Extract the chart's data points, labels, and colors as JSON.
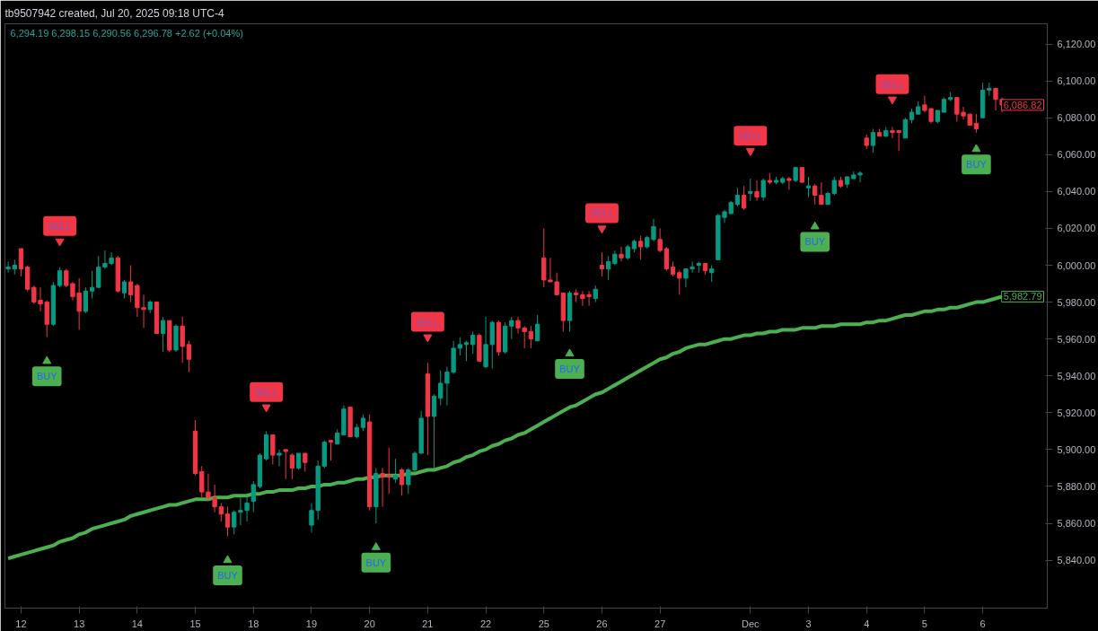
{
  "chart_data": {
    "type": "candlestick",
    "title": "tb9507942 created, Jul 20, 2025 09:18 UTC-4",
    "annotations": [
      "6,294.19  6,298.15  6,290.56  6,296.78  +2.62 (+0.04%)",
      "6,086.82",
      "5,982.79"
    ],
    "categories": [
      null,
      null,
      "12",
      null,
      null,
      null,
      null,
      null,
      null,
      null,
      null,
      "13",
      null,
      null,
      null,
      null,
      null,
      null,
      null,
      null,
      "14",
      null,
      null,
      null,
      null,
      null,
      null,
      null,
      null,
      "15",
      null,
      null,
      null,
      null,
      null,
      null,
      null,
      null,
      "18",
      null,
      null,
      null,
      null,
      null,
      null,
      null,
      null,
      "19",
      null,
      null,
      null,
      null,
      null,
      null,
      null,
      null,
      "20",
      null,
      null,
      null,
      null,
      null,
      null,
      null,
      null,
      "21",
      null,
      null,
      null,
      null,
      null,
      null,
      null,
      null,
      "22",
      null,
      null,
      null,
      null,
      null,
      null,
      null,
      null,
      "25",
      null,
      null,
      null,
      null,
      null,
      null,
      null,
      null,
      "26",
      null,
      null,
      null,
      null,
      null,
      null,
      null,
      null,
      "27",
      null,
      null,
      null,
      null,
      null,
      null,
      null,
      null,
      null,
      null,
      null,
      null,
      null,
      "Dec",
      null,
      null,
      null,
      null,
      null,
      null,
      null,
      null,
      "3",
      null,
      null,
      null,
      null,
      null,
      null,
      null,
      null,
      "4",
      null,
      null,
      null,
      null,
      null,
      null,
      null,
      null,
      "5",
      null,
      null,
      null,
      null,
      null,
      null,
      null,
      null,
      "6",
      null,
      null,
      null
    ],
    "ohlc": [
      [
        5998,
        6002,
        5996,
        5999
      ],
      [
        5998,
        6003,
        5995,
        6000
      ],
      [
        6009,
        6009,
        5994,
        5998
      ],
      [
        5999,
        6000,
        5986,
        5987
      ],
      [
        5988,
        5989,
        5979,
        5980
      ],
      [
        5981,
        5988,
        5975,
        5979
      ],
      [
        5980,
        5981,
        5961,
        5968
      ],
      [
        5968,
        5991,
        5967,
        5989
      ],
      [
        5989,
        5999,
        5988,
        5997
      ],
      [
        5997,
        5998,
        5988,
        5989
      ],
      [
        5990,
        5991,
        5981,
        5983
      ],
      [
        5985,
        5993,
        5965,
        5975
      ],
      [
        5975,
        5988,
        5974,
        5986
      ],
      [
        5986,
        5997,
        5982,
        5988
      ],
      [
        5988,
        6005,
        5988,
        5999
      ],
      [
        5999,
        6008,
        5998,
        6001
      ],
      [
        6001,
        6007,
        6000,
        6004
      ],
      [
        6004,
        6005,
        5985,
        5986
      ],
      [
        5985,
        5992,
        5982,
        5991
      ],
      [
        5991,
        6000,
        5980,
        5984
      ],
      [
        5989,
        5990,
        5972,
        5977
      ],
      [
        5977,
        5984,
        5966,
        5976
      ],
      [
        5976,
        5981,
        5974,
        5980
      ],
      [
        5980,
        5980,
        5963,
        5963
      ],
      [
        5963,
        5972,
        5953,
        5970
      ],
      [
        5970,
        5970,
        5953,
        5954
      ],
      [
        5954,
        5968,
        5953,
        5967
      ],
      [
        5967,
        5972,
        5947,
        5956
      ],
      [
        5957,
        5959,
        5942,
        5949
      ],
      [
        5910,
        5916,
        5886,
        5887
      ],
      [
        5888,
        5891,
        5874,
        5877
      ],
      [
        5877,
        5887,
        5872,
        5874
      ],
      [
        5874,
        5881,
        5866,
        5869
      ],
      [
        5869,
        5871,
        5861,
        5865
      ],
      [
        5865,
        5869,
        5853,
        5858
      ],
      [
        5858,
        5867,
        5854,
        5866
      ],
      [
        5866,
        5874,
        5859,
        5867
      ],
      [
        5867,
        5875,
        5861,
        5871
      ],
      [
        5872,
        5883,
        5866,
        5881
      ],
      [
        5880,
        5898,
        5879,
        5897
      ],
      [
        5895,
        5910,
        5894,
        5908
      ],
      [
        5908,
        5908,
        5892,
        5897
      ],
      [
        5897,
        5900,
        5891,
        5898
      ],
      [
        5900,
        5900,
        5884,
        5899
      ],
      [
        5897,
        5898,
        5884,
        5890
      ],
      [
        5890,
        5898,
        5889,
        5898
      ],
      [
        5898,
        5898,
        5888,
        5893
      ],
      [
        5859,
        5871,
        5855,
        5867
      ],
      [
        5867,
        5894,
        5862,
        5891
      ],
      [
        5891,
        5905,
        5890,
        5904
      ],
      [
        5905,
        5905,
        5894,
        5904
      ],
      [
        5903,
        5911,
        5903,
        5909
      ],
      [
        5908,
        5924,
        5908,
        5922
      ],
      [
        5923,
        5923,
        5907,
        5907
      ],
      [
        5907,
        5914,
        5906,
        5912
      ],
      [
        5912,
        5919,
        5910,
        5917
      ],
      [
        5915,
        5919,
        5867,
        5869
      ],
      [
        5869,
        5890,
        5860,
        5887
      ],
      [
        5887,
        5890,
        5869,
        5885
      ],
      [
        5886,
        5901,
        5876,
        5885
      ],
      [
        5884,
        5895,
        5882,
        5886
      ],
      [
        5889,
        5890,
        5875,
        5881
      ],
      [
        5881,
        5890,
        5876,
        5889
      ],
      [
        5889,
        5899,
        5888,
        5898
      ],
      [
        5898,
        5921,
        5898,
        5917
      ],
      [
        5941,
        5947,
        5897,
        5918
      ],
      [
        5918,
        5930,
        5890,
        5929
      ],
      [
        5928,
        5943,
        5924,
        5936
      ],
      [
        5936,
        5945,
        5924,
        5942
      ],
      [
        5942,
        5959,
        5941,
        5955
      ],
      [
        5955,
        5961,
        5951,
        5957
      ],
      [
        5957,
        5959,
        5948,
        5958
      ],
      [
        5957,
        5964,
        5952,
        5962
      ],
      [
        5962,
        5963,
        5948,
        5948
      ],
      [
        5945,
        5972,
        5944,
        5957
      ],
      [
        5957,
        5970,
        5944,
        5969
      ],
      [
        5969,
        5970,
        5951,
        5953
      ],
      [
        5953,
        5969,
        5952,
        5967
      ],
      [
        5967,
        5972,
        5960,
        5970
      ],
      [
        5970,
        5972,
        5963,
        5966
      ],
      [
        5966,
        5967,
        5955,
        5964
      ],
      [
        5964,
        5967,
        5955,
        5960
      ],
      [
        5959,
        5973,
        5959,
        5968
      ],
      [
        6004,
        6020,
        5988,
        5992
      ],
      [
        5992,
        6004,
        5991,
        5991
      ],
      [
        5991,
        5996,
        5984,
        5984
      ],
      [
        5985,
        5985,
        5964,
        5970
      ],
      [
        5970,
        5986,
        5964,
        5985
      ],
      [
        5985,
        5987,
        5980,
        5984
      ],
      [
        5984,
        5986,
        5978,
        5982
      ],
      [
        5984,
        5986,
        5978,
        5983
      ],
      [
        5982,
        5989,
        5980,
        5987
      ],
      [
        6000,
        6007,
        5994,
        5998
      ],
      [
        5998,
        6005,
        5992,
        6002
      ],
      [
        6001,
        6008,
        6000,
        6006
      ],
      [
        6006,
        6010,
        6002,
        6004
      ],
      [
        6004,
        6011,
        6003,
        6010
      ],
      [
        6009,
        6014,
        6007,
        6013
      ],
      [
        6013,
        6016,
        6003,
        6010
      ],
      [
        6010,
        6016,
        6009,
        6015
      ],
      [
        6014,
        6025,
        6013,
        6021
      ],
      [
        6014,
        6020,
        6007,
        6008
      ],
      [
        6009,
        6010,
        5997,
        5998
      ],
      [
        5999,
        6002,
        5994,
        5995
      ],
      [
        5996,
        5997,
        5984,
        5993
      ],
      [
        5993,
        5998,
        5988,
        5998
      ],
      [
        5998,
        6002,
        5996,
        5999
      ],
      [
        6000,
        6002,
        5996,
        6001
      ],
      [
        6001,
        6001,
        5995,
        5997
      ],
      [
        5996,
        6000,
        5991,
        5998
      ],
      [
        6003,
        6028,
        6003,
        6027
      ],
      [
        6026,
        6030,
        6023,
        6029
      ],
      [
        6028,
        6035,
        6028,
        6034
      ],
      [
        6033,
        6042,
        6032,
        6038
      ],
      [
        6038,
        6043,
        6030,
        6031
      ],
      [
        6039,
        6047,
        6035,
        6040
      ],
      [
        6040,
        6046,
        6035,
        6037
      ],
      [
        6037,
        6047,
        6035,
        6046
      ],
      [
        6046,
        6050,
        6044,
        6045
      ],
      [
        6045,
        6048,
        6044,
        6046
      ],
      [
        6045,
        6048,
        6044,
        6047
      ],
      [
        6047,
        6048,
        6041,
        6046
      ],
      [
        6046,
        6053,
        6045,
        6053
      ],
      [
        6053,
        6053,
        6045,
        6045
      ],
      [
        6042,
        6048,
        6037,
        6043
      ],
      [
        6043,
        6044,
        6033,
        6038
      ],
      [
        6038,
        6045,
        6033,
        6033
      ],
      [
        6033,
        6040,
        6033,
        6039
      ],
      [
        6039,
        6048,
        6038,
        6046
      ],
      [
        6046,
        6048,
        6042,
        6043
      ],
      [
        6044,
        6048,
        6042,
        6048
      ],
      [
        6047,
        6051,
        6047,
        6049
      ],
      [
        6049,
        6051,
        6045,
        6050
      ],
      [
        6069,
        6071,
        6063,
        6065
      ],
      [
        6065,
        6074,
        6061,
        6072
      ],
      [
        6072,
        6074,
        6070,
        6070
      ],
      [
        6070,
        6075,
        6070,
        6073
      ],
      [
        6073,
        6075,
        6069,
        6072
      ],
      [
        6073,
        6073,
        6062,
        6072
      ],
      [
        6069,
        6080,
        6069,
        6079
      ],
      [
        6079,
        6085,
        6077,
        6083
      ],
      [
        6082,
        6089,
        6082,
        6086
      ],
      [
        6087,
        6092,
        6083,
        6084
      ],
      [
        6085,
        6085,
        6077,
        6078
      ],
      [
        6078,
        6084,
        6077,
        6084
      ],
      [
        6083,
        6091,
        6083,
        6090
      ],
      [
        6090,
        6094,
        6089,
        6091
      ],
      [
        6091,
        6091,
        6078,
        6082
      ],
      [
        6083,
        6086,
        6079,
        6081
      ],
      [
        6082,
        6082,
        6076,
        6076
      ],
      [
        6077,
        6082,
        6072,
        6074
      ],
      [
        6080,
        6099,
        6080,
        6095
      ],
      [
        6095,
        6099,
        6092,
        6096
      ],
      [
        6096,
        6096,
        6084,
        6090
      ],
      [
        6090,
        6091,
        6083,
        6087
      ]
    ],
    "colors": [
      "#089981",
      "#089981",
      "#f23645",
      "#f23645",
      "#f23645",
      "#f23645",
      "#f23645",
      "#089981",
      "#089981",
      "#f23645",
      "#f23645",
      "#f23645",
      "#089981",
      "#089981",
      "#089981",
      "#089981",
      "#089981",
      "#f23645",
      "#089981",
      "#f23645",
      "#f23645",
      "#f23645",
      "#089981",
      "#f23645",
      "#089981",
      "#f23645",
      "#089981",
      "#f23645",
      "#f23645",
      "#f23645",
      "#f23645",
      "#f23645",
      "#f23645",
      "#f23645",
      "#f23645",
      "#089981",
      "#089981",
      "#089981",
      "#089981",
      "#089981",
      "#089981",
      "#f23645",
      "#089981",
      "#f23645",
      "#f23645",
      "#089981",
      "#f23645",
      "#089981",
      "#089981",
      "#089981",
      "#f23645",
      "#089981",
      "#089981",
      "#f23645",
      "#089981",
      "#089981",
      "#f23645",
      "#089981",
      "#f23645",
      "#f23645",
      "#089981",
      "#f23645",
      "#089981",
      "#089981",
      "#089981",
      "#f23645",
      "#089981",
      "#089981",
      "#089981",
      "#089981",
      "#089981",
      "#089981",
      "#089981",
      "#f23645",
      "#089981",
      "#089981",
      "#f23645",
      "#089981",
      "#089981",
      "#f23645",
      "#f23645",
      "#f23645",
      "#089981",
      "#f23645",
      "#f23645",
      "#f23645",
      "#f23645",
      "#089981",
      "#f23645",
      "#f23645",
      "#f23645",
      "#089981",
      "#f23645",
      "#089981",
      "#089981",
      "#f23645",
      "#089981",
      "#089981",
      "#f23645",
      "#089981",
      "#089981",
      "#f23645",
      "#f23645",
      "#f23645",
      "#f23645",
      "#089981",
      "#089981",
      "#089981",
      "#f23645",
      "#089981",
      "#089981",
      "#089981",
      "#089981",
      "#089981",
      "#f23645",
      "#089981",
      "#f23645",
      "#089981",
      "#f23645",
      "#089981",
      "#089981",
      "#f23645",
      "#089981",
      "#f23645",
      "#089981",
      "#f23645",
      "#f23645",
      "#089981",
      "#089981",
      "#f23645",
      "#089981",
      "#089981",
      "#089981",
      "#f23645",
      "#089981",
      "#f23645",
      "#089981",
      "#f23645",
      "#f23645",
      "#089981",
      "#089981",
      "#089981",
      "#f23645",
      "#f23645",
      "#089981",
      "#089981",
      "#089981",
      "#f23645",
      "#f23645",
      "#f23645",
      "#f23645",
      "#089981",
      "#089981",
      "#f23645",
      "#f23645"
    ],
    "series": [
      {
        "type": "line",
        "color": "#4caf50",
        "values": [
          5841,
          5842,
          5843,
          5844,
          5845,
          5846,
          5847,
          5848,
          5850,
          5851,
          5852,
          5854,
          5855,
          5857,
          5858,
          5859,
          5860,
          5861,
          5862,
          5864,
          5865,
          5866,
          5867,
          5868,
          5869,
          5870,
          5870,
          5871,
          5872,
          5873,
          5873,
          5873,
          5874,
          5874,
          5874,
          5875,
          5875,
          5875,
          5876,
          5876,
          5877,
          5877,
          5878,
          5878,
          5878,
          5879,
          5879,
          5880,
          5880,
          5881,
          5881,
          5882,
          5882,
          5883,
          5884,
          5884,
          5885,
          5885,
          5886,
          5886,
          5886,
          5886,
          5887,
          5887,
          5888,
          5889,
          5889,
          5890,
          5891,
          5893,
          5894,
          5896,
          5897,
          5899,
          5900,
          5902,
          5903,
          5905,
          5906,
          5908,
          5909,
          5911,
          5913,
          5915,
          5917,
          5919,
          5921,
          5923,
          5924,
          5926,
          5928,
          5930,
          5931,
          5933,
          5935,
          5937,
          5939,
          5941,
          5943,
          5945,
          5947,
          5949,
          5950,
          5952,
          5953,
          5955,
          5956,
          5957,
          5957,
          5958,
          5959,
          5960,
          5960,
          5961,
          5962,
          5962,
          5963,
          5963,
          5964,
          5964,
          5965,
          5965,
          5965,
          5966,
          5966,
          5966,
          5967,
          5967,
          5967,
          5968,
          5968,
          5968,
          5968,
          5969,
          5969,
          5970,
          5970,
          5971,
          5972,
          5973,
          5973,
          5974,
          5975,
          5975,
          5976,
          5976,
          5977,
          5977,
          5978,
          5979,
          5980,
          5980,
          5981,
          5982,
          5983
        ]
      },
      {
        "type": "scatter",
        "color": "#f23645",
        "marker": "triangle",
        "values": [
          null,
          null,
          null,
          null,
          null,
          null,
          null,
          null,
          6013,
          null,
          null,
          null,
          null,
          null,
          null,
          null,
          null,
          null,
          null,
          null,
          null,
          null,
          null,
          null,
          null,
          null,
          null,
          null,
          null,
          null,
          null,
          null,
          null,
          null,
          null,
          null,
          null,
          null,
          null,
          null,
          5923,
          null,
          null,
          null,
          null,
          null,
          null,
          null,
          null,
          null,
          null,
          null,
          null,
          null,
          null,
          null,
          null,
          null,
          null,
          null,
          null,
          null,
          null,
          null,
          null,
          5961,
          null,
          null,
          null,
          null,
          null,
          null,
          null,
          null,
          null,
          null,
          null,
          null,
          null,
          null,
          null,
          null,
          null,
          null,
          null,
          null,
          null,
          null,
          null,
          null,
          null,
          null,
          6020,
          null,
          null,
          null,
          null,
          null,
          null,
          null,
          null,
          null,
          null,
          null,
          null,
          null,
          null,
          null,
          null,
          null,
          null,
          null,
          null,
          null,
          null,
          6062,
          null,
          null,
          null,
          null,
          null,
          null,
          null,
          null,
          null,
          null,
          null,
          null,
          null,
          null,
          null,
          null,
          null,
          null,
          null,
          null,
          null,
          6090,
          null,
          null,
          null,
          null,
          null,
          null,
          null,
          null,
          null,
          null,
          null,
          null,
          null,
          null,
          null,
          null,
          null
        ],
        "value_labels": [
          null,
          null,
          null,
          null,
          null,
          null,
          null,
          null,
          "SELL",
          null,
          null,
          null,
          null,
          null,
          null,
          null,
          null,
          null,
          null,
          null,
          null,
          null,
          null,
          null,
          null,
          null,
          null,
          null,
          null,
          null,
          null,
          null,
          null,
          null,
          null,
          null,
          null,
          null,
          null,
          null,
          "SELL",
          null,
          null,
          null,
          null,
          null,
          null,
          null,
          null,
          null,
          null,
          null,
          null,
          null,
          null,
          null,
          null,
          null,
          null,
          null,
          null,
          null,
          null,
          null,
          null,
          "SELL",
          null,
          null,
          null,
          null,
          null,
          null,
          null,
          null,
          null,
          null,
          null,
          null,
          null,
          null,
          null,
          null,
          null,
          null,
          null,
          null,
          null,
          null,
          null,
          null,
          null,
          null,
          "SELL",
          null,
          null,
          null,
          null,
          null,
          null,
          null,
          null,
          null,
          null,
          null,
          null,
          null,
          null,
          null,
          null,
          null,
          null,
          null,
          null,
          null,
          null,
          "SELL",
          null,
          null,
          null,
          null,
          null,
          null,
          null,
          null,
          null,
          null,
          null,
          null,
          null,
          null,
          null,
          null,
          null,
          null,
          null,
          null,
          null,
          "SELL",
          null,
          null,
          null,
          null,
          null,
          null,
          null,
          null,
          null,
          null,
          null,
          null,
          null,
          null,
          null,
          null,
          null
        ]
      },
      {
        "type": "scatter",
        "color": "#4caf50",
        "marker": "triangle",
        "values": [
          null,
          null,
          null,
          null,
          null,
          null,
          5948,
          null,
          null,
          null,
          null,
          null,
          null,
          null,
          null,
          null,
          null,
          null,
          null,
          null,
          null,
          null,
          null,
          null,
          null,
          null,
          null,
          null,
          null,
          null,
          null,
          null,
          null,
          null,
          5840,
          null,
          null,
          null,
          null,
          null,
          null,
          null,
          null,
          null,
          null,
          null,
          null,
          null,
          null,
          null,
          null,
          null,
          null,
          null,
          null,
          null,
          null,
          5847,
          null,
          null,
          null,
          null,
          null,
          null,
          null,
          null,
          null,
          null,
          null,
          null,
          null,
          null,
          null,
          null,
          null,
          null,
          null,
          null,
          null,
          null,
          null,
          null,
          null,
          null,
          null,
          null,
          null,
          5952,
          null,
          null,
          null,
          null,
          null,
          null,
          null,
          null,
          null,
          null,
          null,
          null,
          null,
          null,
          null,
          null,
          null,
          null,
          null,
          null,
          null,
          null,
          null,
          null,
          null,
          null,
          null,
          null,
          null,
          null,
          null,
          null,
          null,
          null,
          null,
          null,
          null,
          6021,
          null,
          null,
          null,
          null,
          null,
          null,
          null,
          null,
          null,
          null,
          null,
          null,
          null,
          null,
          null,
          null,
          null,
          null,
          null,
          null,
          null,
          null,
          null,
          null,
          6063,
          null,
          null,
          null,
          null
        ],
        "value_labels": [
          null,
          null,
          null,
          null,
          null,
          null,
          "BUY",
          null,
          null,
          null,
          null,
          null,
          null,
          null,
          null,
          null,
          null,
          null,
          null,
          null,
          null,
          null,
          null,
          null,
          null,
          null,
          null,
          null,
          null,
          null,
          null,
          null,
          null,
          null,
          "BUY",
          null,
          null,
          null,
          null,
          null,
          null,
          null,
          null,
          null,
          null,
          null,
          null,
          null,
          null,
          null,
          null,
          null,
          null,
          null,
          null,
          null,
          null,
          "BUY",
          null,
          null,
          null,
          null,
          null,
          null,
          null,
          null,
          null,
          null,
          null,
          null,
          null,
          null,
          null,
          null,
          null,
          null,
          null,
          null,
          null,
          null,
          null,
          null,
          null,
          null,
          null,
          null,
          null,
          "BUY",
          null,
          null,
          null,
          null,
          null,
          null,
          null,
          null,
          null,
          null,
          null,
          null,
          null,
          null,
          null,
          null,
          null,
          null,
          null,
          null,
          null,
          null,
          null,
          null,
          null,
          null,
          null,
          null,
          null,
          null,
          null,
          null,
          null,
          null,
          null,
          null,
          null,
          "BUY",
          null,
          null,
          null,
          null,
          null,
          null,
          null,
          null,
          null,
          null,
          null,
          null,
          null,
          null,
          null,
          null,
          null,
          null,
          null,
          null,
          null,
          null,
          null,
          null,
          "BUY",
          null,
          null,
          null,
          null
        ]
      }
    ],
    "ylim": [
      5814,
      6131
    ],
    "yticks": [
      {
        "value": 5840,
        "label": "5,840.00"
      },
      {
        "value": 5860,
        "label": "5,860.00"
      },
      {
        "value": 5880,
        "label": "5,880.00"
      },
      {
        "value": 5900,
        "label": "5,900.00"
      },
      {
        "value": 5920,
        "label": "5,920.00"
      },
      {
        "value": 5940,
        "label": "5,940.00"
      },
      {
        "value": 5960,
        "label": "5,960.00"
      },
      {
        "value": 5980,
        "label": "5,980.00"
      },
      {
        "value": 6000,
        "label": "6,000.00"
      },
      {
        "value": 6020,
        "label": "6,020.00"
      },
      {
        "value": 6040,
        "label": "6,040.00"
      },
      {
        "value": 6060,
        "label": "6,060.00"
      },
      {
        "value": 6080,
        "label": "6,080.00"
      },
      {
        "value": 6100,
        "label": "6,100.00"
      },
      {
        "value": 6120,
        "label": "6,120.00"
      }
    ]
  }
}
